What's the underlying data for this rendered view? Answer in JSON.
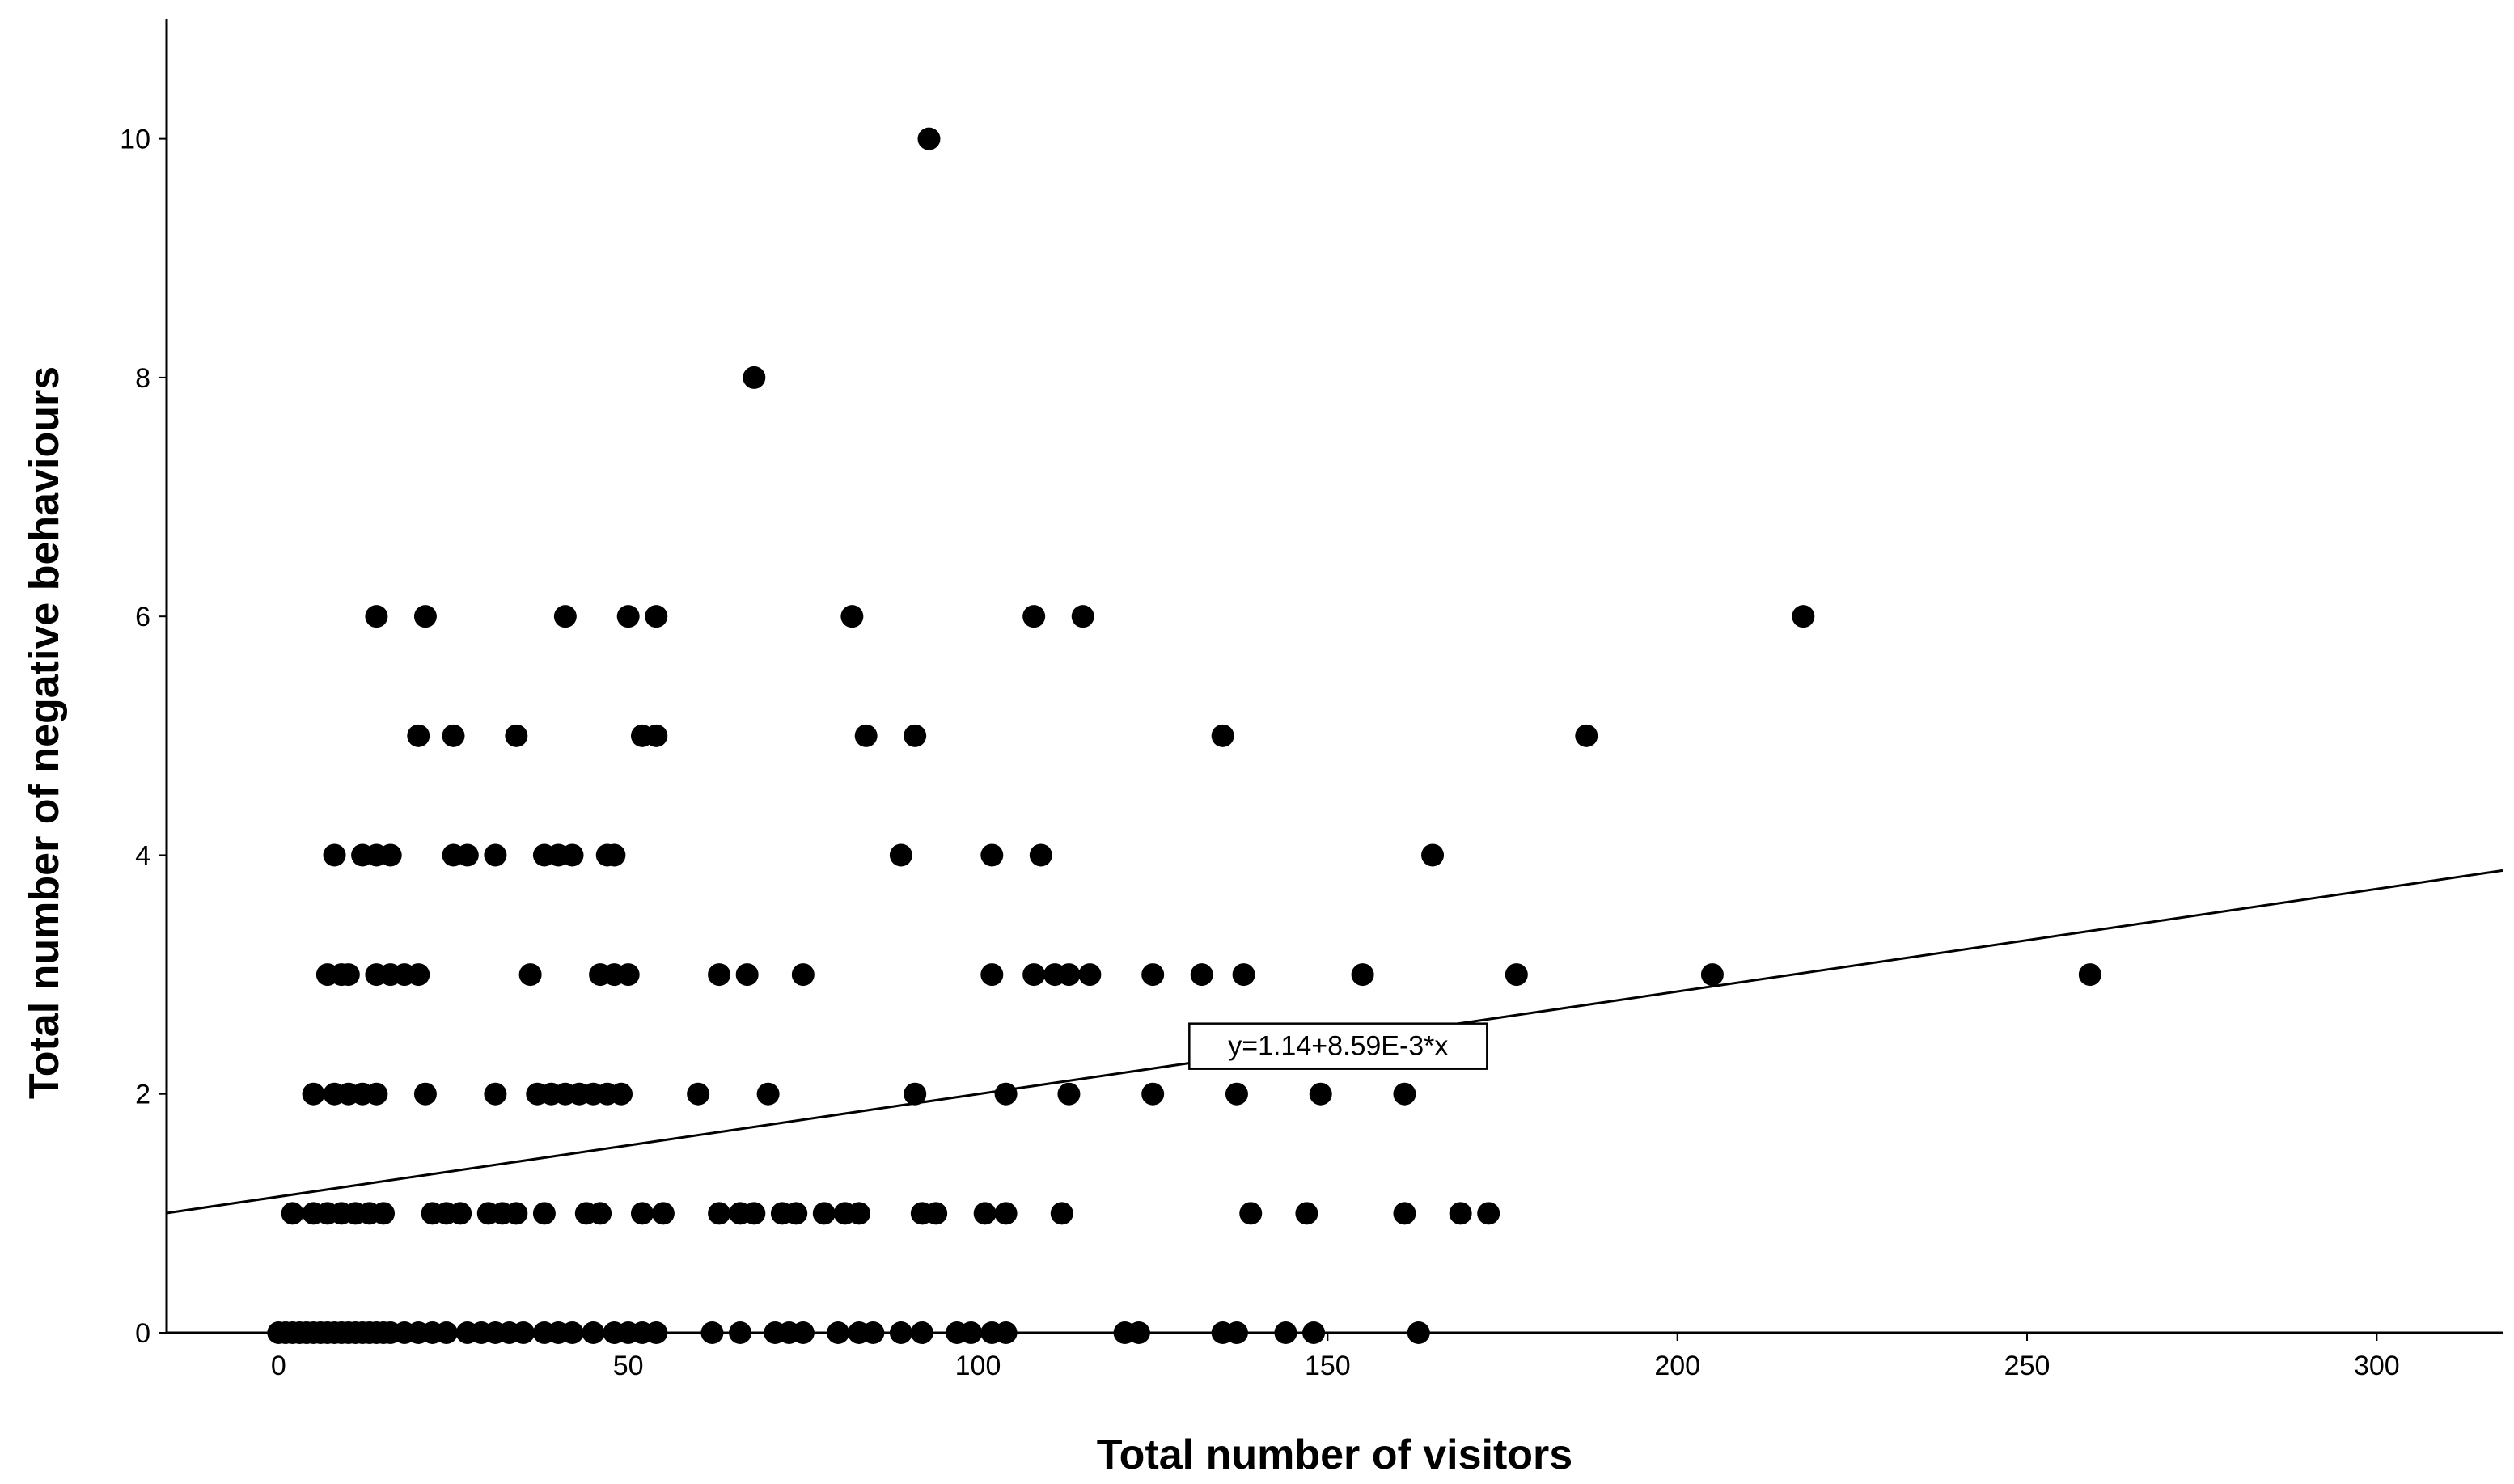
{
  "chart_data": {
    "type": "scatter",
    "title": "",
    "xlabel": "Total number of visitors",
    "ylabel": "Total number of negative behaviours",
    "xlim": [
      -16,
      318
    ],
    "ylim": [
      0,
      11
    ],
    "x_ticks": [
      0,
      50,
      100,
      150,
      200,
      250,
      300
    ],
    "y_ticks": [
      0,
      2,
      4,
      6,
      8,
      10
    ],
    "grid": false,
    "legend": "none",
    "marker_color": "#000000",
    "fit_line": {
      "intercept": 1.14,
      "slope": 0.00859,
      "label": "y=1.14+8.59E-3*x"
    },
    "points": [
      {
        "x": 93,
        "y": 10
      },
      {
        "x": 68,
        "y": 8
      },
      {
        "x": 14,
        "y": 6
      },
      {
        "x": 21,
        "y": 6
      },
      {
        "x": 41,
        "y": 6
      },
      {
        "x": 50,
        "y": 6
      },
      {
        "x": 54,
        "y": 6
      },
      {
        "x": 82,
        "y": 6
      },
      {
        "x": 108,
        "y": 6
      },
      {
        "x": 115,
        "y": 6
      },
      {
        "x": 218,
        "y": 6
      },
      {
        "x": 20,
        "y": 5
      },
      {
        "x": 25,
        "y": 5
      },
      {
        "x": 34,
        "y": 5
      },
      {
        "x": 52,
        "y": 5
      },
      {
        "x": 54,
        "y": 5
      },
      {
        "x": 84,
        "y": 5
      },
      {
        "x": 91,
        "y": 5
      },
      {
        "x": 135,
        "y": 5
      },
      {
        "x": 187,
        "y": 5
      },
      {
        "x": 8,
        "y": 4
      },
      {
        "x": 12,
        "y": 4
      },
      {
        "x": 14,
        "y": 4
      },
      {
        "x": 16,
        "y": 4
      },
      {
        "x": 25,
        "y": 4
      },
      {
        "x": 27,
        "y": 4
      },
      {
        "x": 31,
        "y": 4
      },
      {
        "x": 38,
        "y": 4
      },
      {
        "x": 40,
        "y": 4
      },
      {
        "x": 42,
        "y": 4
      },
      {
        "x": 47,
        "y": 4
      },
      {
        "x": 48,
        "y": 4
      },
      {
        "x": 89,
        "y": 4
      },
      {
        "x": 102,
        "y": 4
      },
      {
        "x": 109,
        "y": 4
      },
      {
        "x": 165,
        "y": 4
      },
      {
        "x": 7,
        "y": 3
      },
      {
        "x": 9,
        "y": 3
      },
      {
        "x": 10,
        "y": 3
      },
      {
        "x": 14,
        "y": 3
      },
      {
        "x": 16,
        "y": 3
      },
      {
        "x": 18,
        "y": 3
      },
      {
        "x": 20,
        "y": 3
      },
      {
        "x": 36,
        "y": 3
      },
      {
        "x": 46,
        "y": 3
      },
      {
        "x": 48,
        "y": 3
      },
      {
        "x": 50,
        "y": 3
      },
      {
        "x": 63,
        "y": 3
      },
      {
        "x": 67,
        "y": 3
      },
      {
        "x": 75,
        "y": 3
      },
      {
        "x": 102,
        "y": 3
      },
      {
        "x": 108,
        "y": 3
      },
      {
        "x": 111,
        "y": 3
      },
      {
        "x": 113,
        "y": 3
      },
      {
        "x": 116,
        "y": 3
      },
      {
        "x": 125,
        "y": 3
      },
      {
        "x": 132,
        "y": 3
      },
      {
        "x": 138,
        "y": 3
      },
      {
        "x": 155,
        "y": 3
      },
      {
        "x": 177,
        "y": 3
      },
      {
        "x": 205,
        "y": 3
      },
      {
        "x": 259,
        "y": 3
      },
      {
        "x": 5,
        "y": 2
      },
      {
        "x": 8,
        "y": 2
      },
      {
        "x": 10,
        "y": 2
      },
      {
        "x": 12,
        "y": 2
      },
      {
        "x": 14,
        "y": 2
      },
      {
        "x": 21,
        "y": 2
      },
      {
        "x": 31,
        "y": 2
      },
      {
        "x": 37,
        "y": 2
      },
      {
        "x": 39,
        "y": 2
      },
      {
        "x": 41,
        "y": 2
      },
      {
        "x": 43,
        "y": 2
      },
      {
        "x": 45,
        "y": 2
      },
      {
        "x": 47,
        "y": 2
      },
      {
        "x": 49,
        "y": 2
      },
      {
        "x": 60,
        "y": 2
      },
      {
        "x": 70,
        "y": 2
      },
      {
        "x": 91,
        "y": 2
      },
      {
        "x": 104,
        "y": 2
      },
      {
        "x": 113,
        "y": 2
      },
      {
        "x": 125,
        "y": 2
      },
      {
        "x": 137,
        "y": 2
      },
      {
        "x": 149,
        "y": 2
      },
      {
        "x": 161,
        "y": 2
      },
      {
        "x": 2,
        "y": 1
      },
      {
        "x": 5,
        "y": 1
      },
      {
        "x": 7,
        "y": 1
      },
      {
        "x": 9,
        "y": 1
      },
      {
        "x": 11,
        "y": 1
      },
      {
        "x": 13,
        "y": 1
      },
      {
        "x": 15,
        "y": 1
      },
      {
        "x": 22,
        "y": 1
      },
      {
        "x": 24,
        "y": 1
      },
      {
        "x": 26,
        "y": 1
      },
      {
        "x": 30,
        "y": 1
      },
      {
        "x": 32,
        "y": 1
      },
      {
        "x": 34,
        "y": 1
      },
      {
        "x": 38,
        "y": 1
      },
      {
        "x": 44,
        "y": 1
      },
      {
        "x": 46,
        "y": 1
      },
      {
        "x": 52,
        "y": 1
      },
      {
        "x": 55,
        "y": 1
      },
      {
        "x": 63,
        "y": 1
      },
      {
        "x": 66,
        "y": 1
      },
      {
        "x": 68,
        "y": 1
      },
      {
        "x": 72,
        "y": 1
      },
      {
        "x": 74,
        "y": 1
      },
      {
        "x": 78,
        "y": 1
      },
      {
        "x": 81,
        "y": 1
      },
      {
        "x": 83,
        "y": 1
      },
      {
        "x": 92,
        "y": 1
      },
      {
        "x": 94,
        "y": 1
      },
      {
        "x": 101,
        "y": 1
      },
      {
        "x": 104,
        "y": 1
      },
      {
        "x": 112,
        "y": 1
      },
      {
        "x": 139,
        "y": 1
      },
      {
        "x": 147,
        "y": 1
      },
      {
        "x": 161,
        "y": 1
      },
      {
        "x": 169,
        "y": 1
      },
      {
        "x": 173,
        "y": 1
      },
      {
        "x": 0,
        "y": 0
      },
      {
        "x": 1,
        "y": 0
      },
      {
        "x": 2,
        "y": 0
      },
      {
        "x": 3,
        "y": 0
      },
      {
        "x": 4,
        "y": 0
      },
      {
        "x": 5,
        "y": 0
      },
      {
        "x": 6,
        "y": 0
      },
      {
        "x": 7,
        "y": 0
      },
      {
        "x": 8,
        "y": 0
      },
      {
        "x": 9,
        "y": 0
      },
      {
        "x": 10,
        "y": 0
      },
      {
        "x": 11,
        "y": 0
      },
      {
        "x": 12,
        "y": 0
      },
      {
        "x": 13,
        "y": 0
      },
      {
        "x": 14,
        "y": 0
      },
      {
        "x": 15,
        "y": 0
      },
      {
        "x": 16,
        "y": 0
      },
      {
        "x": 18,
        "y": 0
      },
      {
        "x": 20,
        "y": 0
      },
      {
        "x": 22,
        "y": 0
      },
      {
        "x": 24,
        "y": 0
      },
      {
        "x": 27,
        "y": 0
      },
      {
        "x": 29,
        "y": 0
      },
      {
        "x": 31,
        "y": 0
      },
      {
        "x": 33,
        "y": 0
      },
      {
        "x": 35,
        "y": 0
      },
      {
        "x": 38,
        "y": 0
      },
      {
        "x": 40,
        "y": 0
      },
      {
        "x": 42,
        "y": 0
      },
      {
        "x": 45,
        "y": 0
      },
      {
        "x": 48,
        "y": 0
      },
      {
        "x": 50,
        "y": 0
      },
      {
        "x": 52,
        "y": 0
      },
      {
        "x": 54,
        "y": 0
      },
      {
        "x": 62,
        "y": 0
      },
      {
        "x": 66,
        "y": 0
      },
      {
        "x": 71,
        "y": 0
      },
      {
        "x": 73,
        "y": 0
      },
      {
        "x": 75,
        "y": 0
      },
      {
        "x": 80,
        "y": 0
      },
      {
        "x": 83,
        "y": 0
      },
      {
        "x": 85,
        "y": 0
      },
      {
        "x": 89,
        "y": 0
      },
      {
        "x": 92,
        "y": 0
      },
      {
        "x": 97,
        "y": 0
      },
      {
        "x": 99,
        "y": 0
      },
      {
        "x": 102,
        "y": 0
      },
      {
        "x": 104,
        "y": 0
      },
      {
        "x": 121,
        "y": 0
      },
      {
        "x": 123,
        "y": 0
      },
      {
        "x": 135,
        "y": 0
      },
      {
        "x": 137,
        "y": 0
      },
      {
        "x": 144,
        "y": 0
      },
      {
        "x": 148,
        "y": 0
      },
      {
        "x": 163,
        "y": 0
      }
    ]
  }
}
